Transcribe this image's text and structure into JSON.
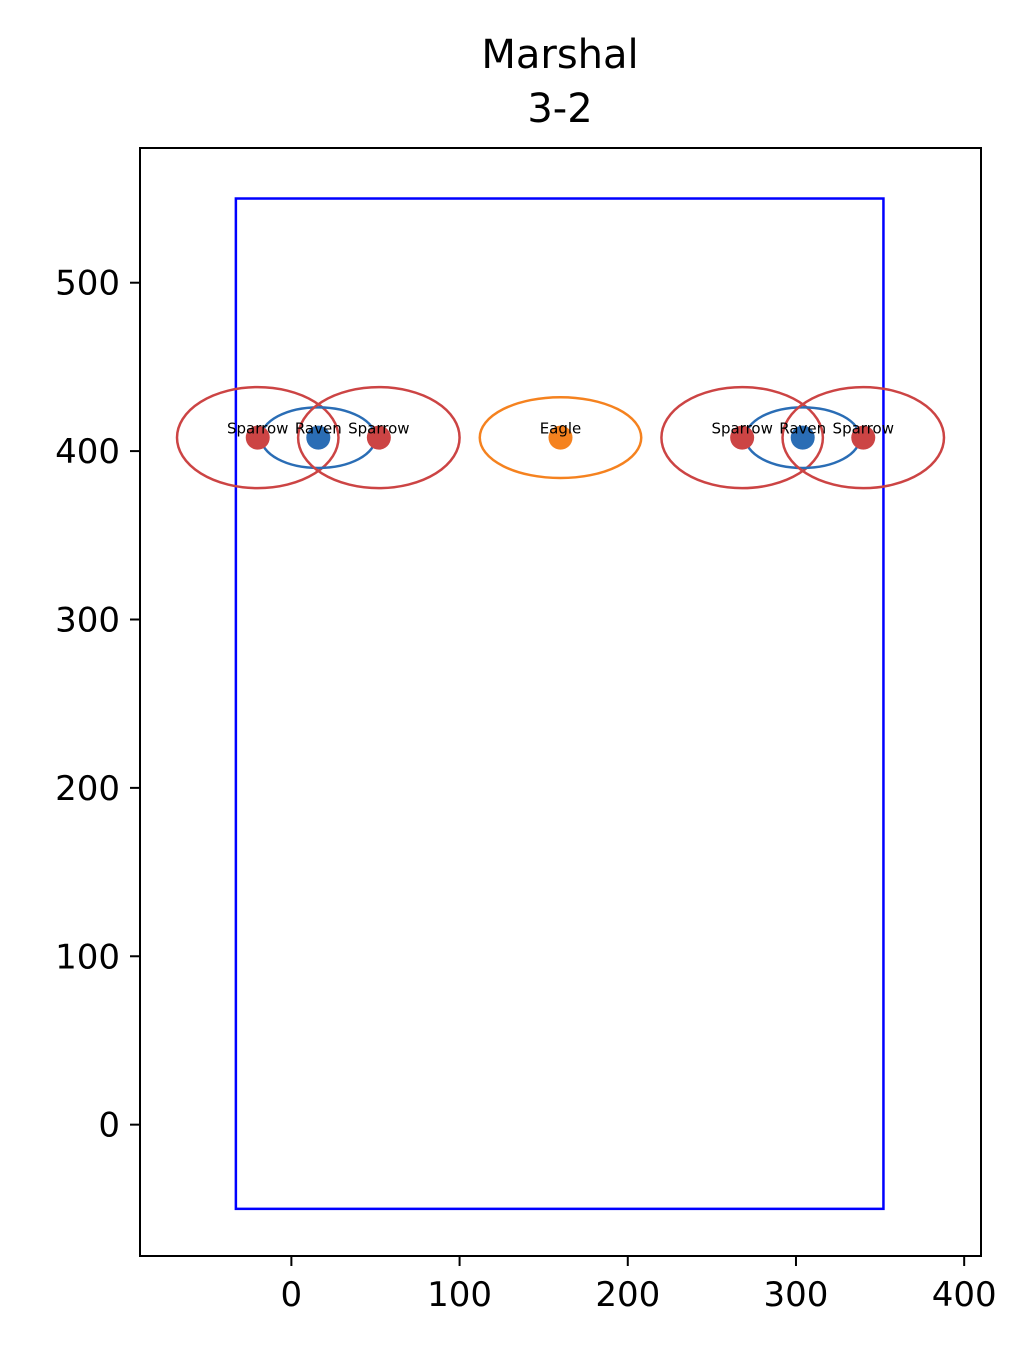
{
  "chart_data": {
    "type": "scatter",
    "title": "Marshal",
    "subtitle": "3-2",
    "xlabel": "",
    "ylabel": "",
    "xlim": [
      -90,
      410
    ],
    "ylim": [
      -78,
      580
    ],
    "x_ticks": [
      0,
      100,
      200,
      300,
      400
    ],
    "y_ticks": [
      0,
      100,
      200,
      300,
      400,
      500
    ],
    "grid": false,
    "boundary": {
      "x0": -33,
      "y0": -50,
      "x1": 352,
      "y1": 550,
      "color": "#0000ff"
    },
    "points": [
      {
        "label": "Sparrow",
        "x": -20,
        "y": 408,
        "color": "#cc4444",
        "ring_rx": 48,
        "ring_ry": 30
      },
      {
        "label": "Raven",
        "x": 16,
        "y": 408,
        "color": "#2a6db5",
        "ring_rx": 34,
        "ring_ry": 18
      },
      {
        "label": "Sparrow",
        "x": 52,
        "y": 408,
        "color": "#cc4444",
        "ring_rx": 48,
        "ring_ry": 30
      },
      {
        "label": "Eagle",
        "x": 160,
        "y": 408,
        "color": "#f5821f",
        "ring_rx": 48,
        "ring_ry": 24
      },
      {
        "label": "Sparrow",
        "x": 268,
        "y": 408,
        "color": "#cc4444",
        "ring_rx": 48,
        "ring_ry": 30
      },
      {
        "label": "Raven",
        "x": 304,
        "y": 408,
        "color": "#2a6db5",
        "ring_rx": 34,
        "ring_ry": 18
      },
      {
        "label": "Sparrow",
        "x": 340,
        "y": 408,
        "color": "#cc4444",
        "ring_rx": 48,
        "ring_ry": 30
      }
    ]
  }
}
